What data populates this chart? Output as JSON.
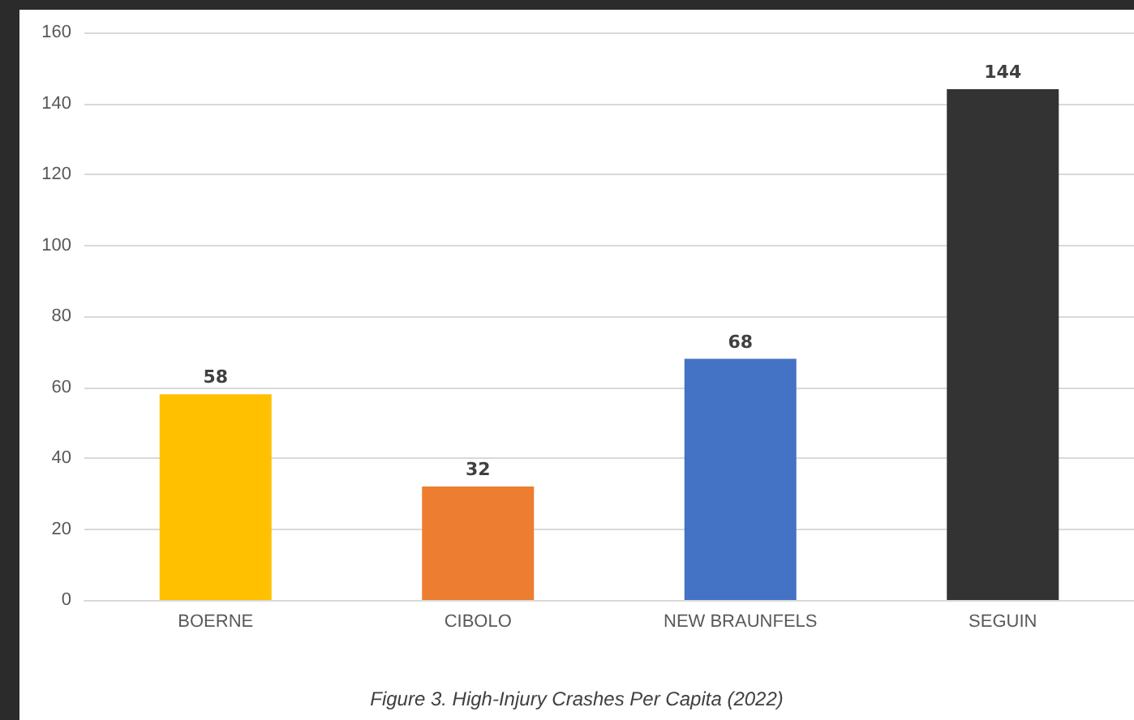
{
  "chart_data": {
    "type": "bar",
    "title": "Figure 3. High-Injury Crashes Per Capita (2022)",
    "categories": [
      "BOERNE",
      "CIBOLO",
      "NEW BRAUNFELS",
      "SEGUIN"
    ],
    "values": [
      58,
      32,
      68,
      144
    ],
    "colors": [
      "#ffc000",
      "#ed7d31",
      "#4472c4",
      "#333333"
    ],
    "ylim": [
      0,
      160
    ],
    "yticks": [
      0,
      20,
      40,
      60,
      80,
      100,
      120,
      140,
      160
    ],
    "grid": "y",
    "data_labels": true
  }
}
